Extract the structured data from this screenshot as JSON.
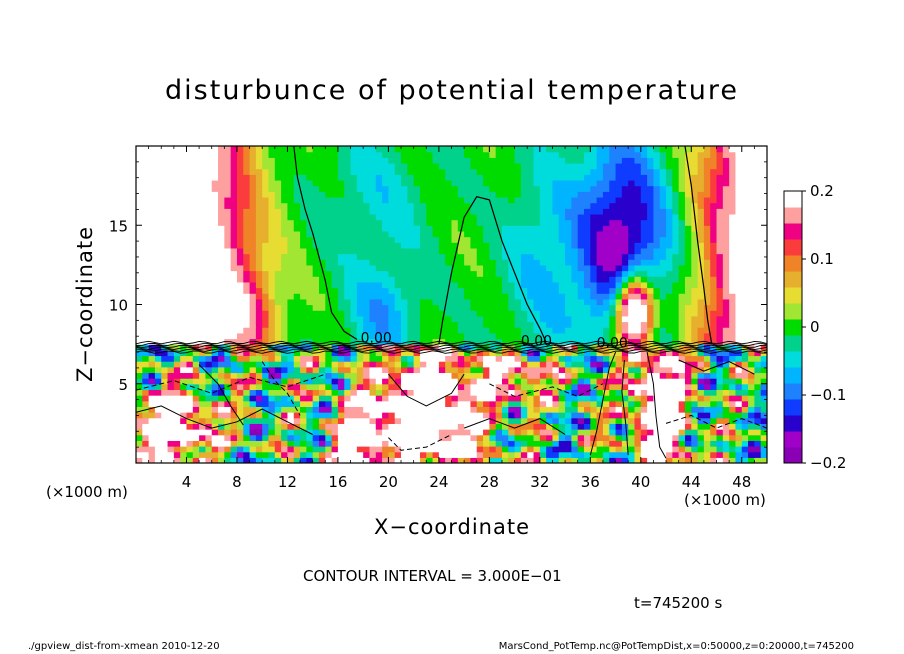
{
  "chart_data": {
    "type": "heatmap",
    "title": "disturbunce of potential temperature",
    "xlabel": "X−coordinate",
    "ylabel": "Z−coordinate",
    "x_unit": "(×1000 m)",
    "x_unit_right": "(×1000 m)",
    "y_unit": "(×1000 m)",
    "xlim": [
      0,
      50
    ],
    "ylim": [
      0,
      20
    ],
    "x_ticks": [
      4,
      8,
      12,
      16,
      20,
      24,
      28,
      32,
      36,
      40,
      44,
      48
    ],
    "y_ticks": [
      5,
      10,
      15
    ],
    "colorbar": {
      "range": [
        -0.2,
        0.2
      ],
      "ticks": [
        "0.2",
        "0.1",
        "0",
        "−0.1",
        "−0.2"
      ],
      "tick_values": [
        0.2,
        0.1,
        0,
        -0.1,
        -0.2
      ]
    },
    "contour_labels": [
      "0.00",
      "0.00",
      "0.00"
    ],
    "contour_interval": "CONTOUR INTERVAL = 3.000E−01",
    "time": "t=745200 s"
  },
  "footer": {
    "left": "./gpview_dist-from-xmean   2010-12-20",
    "right": "MarsCond_PotTemp.nc@PotTempDist,x=0:50000,z=0:20000,t=745200"
  }
}
